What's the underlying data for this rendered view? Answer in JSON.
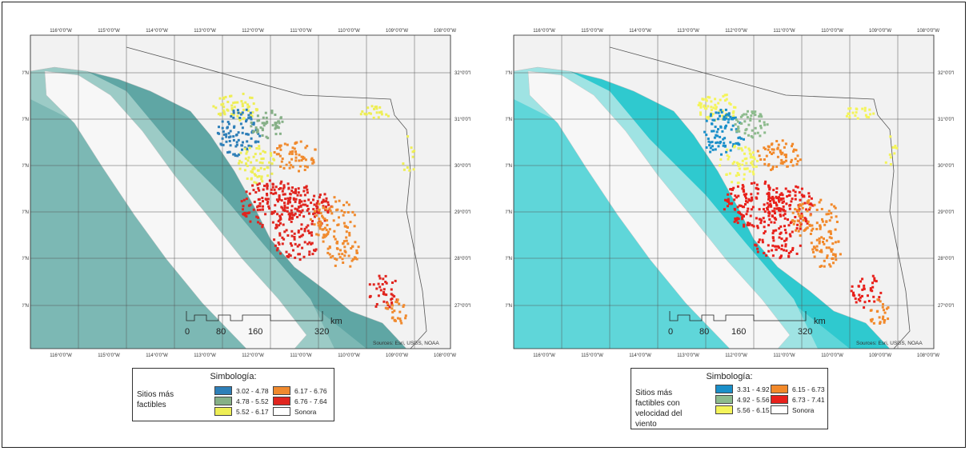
{
  "maps": [
    {
      "top_lon_labels": [
        "116°0'0\"W",
        "115°0'0\"W",
        "114°0'0\"W",
        "113°0'0\"W",
        "112°0'0\"W",
        "111°0'0\"W",
        "110°0'0\"W",
        "109°0'0\"W",
        "108°0'0\"W"
      ],
      "lat_labels": [
        "32°0'0\"N",
        "31°0'0\"N",
        "30°0'0\"N",
        "29°0'0\"N",
        "28°0'0\"N",
        "27°0'0\"N"
      ],
      "scale": {
        "ticks": [
          "0",
          "80",
          "160",
          "320"
        ],
        "unit": "km"
      },
      "sources": "Sources: Esri, USGS, NOAA",
      "sea_colors": {
        "deep": "#5fa6a4",
        "mid": "#7cb8b4",
        "shallow": "#9ccbc6"
      }
    },
    {
      "top_lon_labels": [
        "116°0'0\"W",
        "115°0'0\"W",
        "114°0'0\"W",
        "113°0'0\"W",
        "112°0'0\"W",
        "111°0'0\"W",
        "110°0'0\"W",
        "109°0'0\"W",
        "108°0'0\"W"
      ],
      "lat_labels": [
        "32°0'0\"N",
        "31°0'0\"N",
        "30°0'0\"N",
        "29°0'0\"N",
        "28°0'0\"N",
        "27°0'0\"N"
      ],
      "scale": {
        "ticks": [
          "0",
          "80",
          "160",
          "320"
        ],
        "unit": "km"
      },
      "sources": "Sources: Esri, USGS, NOAA",
      "sea_colors": {
        "deep": "#2fc9cf",
        "mid": "#5fd6d9",
        "shallow": "#9fe3e3"
      }
    }
  ],
  "legends": [
    {
      "title": "Simbología:",
      "label_lines": [
        "Sitios más",
        "factibles"
      ],
      "items": [
        {
          "range": "3.02 - 4.78",
          "color": "#2e7fb8"
        },
        {
          "range": "4.78 - 5.52",
          "color": "#86b087"
        },
        {
          "range": "5.52 - 6.17",
          "color": "#eeee55"
        },
        {
          "range": "6.17 - 6.76",
          "color": "#f08a2e"
        },
        {
          "range": "6.76 - 7.64",
          "color": "#e0251f"
        },
        {
          "range": "Sonora",
          "color": "#ffffff"
        }
      ]
    },
    {
      "title": "Simbología:",
      "label_lines": [
        "Sitios más",
        "factibles con",
        "velocidad del",
        "viento"
      ],
      "items": [
        {
          "range": "3.31 - 4.92",
          "color": "#1a8fc9"
        },
        {
          "range": "4.92 - 5.56",
          "color": "#8dbb8d"
        },
        {
          "range": "5.56 - 6.15",
          "color": "#f4f45a"
        },
        {
          "range": "6.15 - 6.73",
          "color": "#f2892a"
        },
        {
          "range": "6.73 - 7.41",
          "color": "#e8201b"
        },
        {
          "range": "Sonora",
          "color": "#ffffff"
        }
      ]
    }
  ]
}
